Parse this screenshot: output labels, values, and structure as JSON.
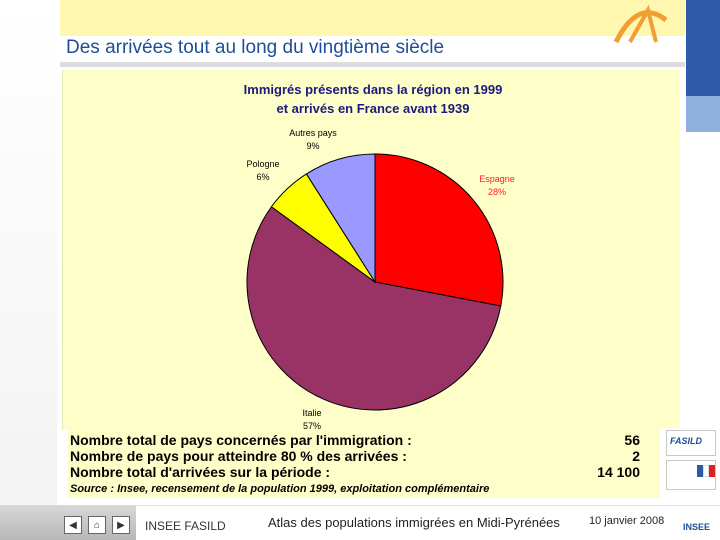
{
  "slide": {
    "title": "Des arrivées tout au long du vingtième siècle"
  },
  "chart_data": {
    "type": "pie",
    "title": "Immigrés présents dans la région en 1999",
    "subtitle": "et arrivés en France avant 1939",
    "slices": [
      {
        "label": "Espagne",
        "value": 28,
        "value_label": "28%",
        "color": "#ff0000"
      },
      {
        "label": "Italie",
        "value": 57,
        "value_label": "57%",
        "color": "#993366"
      },
      {
        "label": "Pologne",
        "value": 6,
        "value_label": "6%",
        "color": "#ffff00"
      },
      {
        "label": "Autres pays",
        "value": 9,
        "value_label": "9%",
        "color": "#9999ff"
      }
    ]
  },
  "stats": [
    {
      "label": "Nombre total de pays concernés par l'immigration :",
      "value": "56"
    },
    {
      "label": "Nombre de pays pour atteindre 80 % des arrivées :",
      "value": "2"
    },
    {
      "label": "Nombre total d'arrivées sur la période :",
      "value": "14 100"
    }
  ],
  "source": "Source : Insee, recensement de la population 1999, exploitation complémentaire",
  "footer": {
    "left": "INSEE FASILD",
    "center": "Atlas des populations immigrées en Midi-Pyrénées",
    "date": "10 janvier 2008"
  },
  "nav": {
    "prev_icon": "triangle-left-icon",
    "home_icon": "home-icon",
    "next_icon": "triangle-right-icon"
  },
  "logos": {
    "fasild_text": "FASILD",
    "insee_text": "INSEE"
  }
}
